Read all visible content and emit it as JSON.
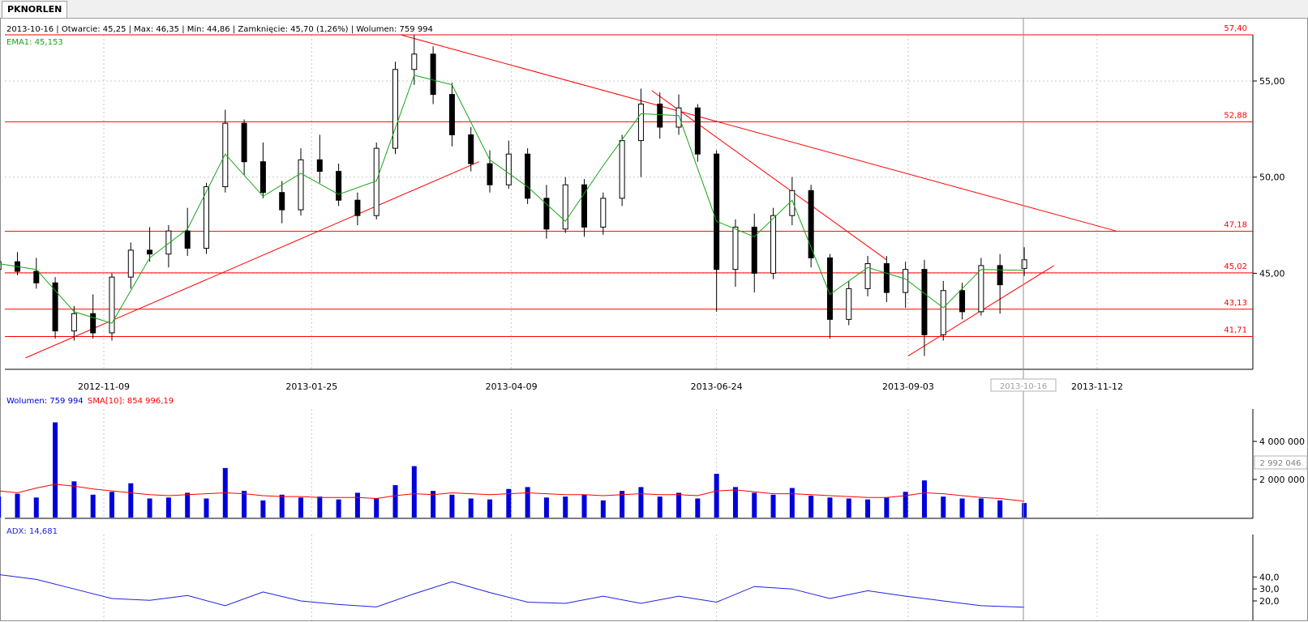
{
  "window": {
    "tab_label": "PKNORLEN"
  },
  "header": {
    "info_line": "2013-10-16 | Otwarcie: 45,25 | Max: 46,35 | Min: 44,86 | Zamknięcie: 45,70 (1,26%) | Wolumen: 759 994",
    "ema_label": "EMA1: 45,153",
    "volume_label": "Wolumen: 759 994",
    "sma_label": "SMA[10]: 854 996,19",
    "adx_label": "ADX: 14,681",
    "cursor_date": "2013-10-16",
    "cursor_volume": "2 992 046"
  },
  "colors": {
    "candle": "#000000",
    "ema": "#16a616",
    "support_resistance": "#ff0000",
    "volume_bar": "#0000dd",
    "sma": "#ff0000",
    "adx": "#2020e0",
    "grid": "#c8c8c8",
    "cursor": "#909090"
  },
  "chart_data": [
    {
      "type": "candlestick",
      "title": "PKNORLEN",
      "x_ticks": [
        "2012-11-09",
        "2013-01-25",
        "2013-04-09",
        "2013-06-24",
        "2013-09-03",
        "2013-11-12"
      ],
      "y_ticks": [
        "45,00",
        "50,00",
        "55,00"
      ],
      "ylim": [
        40.0,
        58.0
      ],
      "grid": true,
      "levels": [
        {
          "label": "57,40",
          "value": 57.4
        },
        {
          "label": "52,88",
          "value": 52.88
        },
        {
          "label": "47,18",
          "value": 47.18
        },
        {
          "label": "45,02",
          "value": 45.02
        },
        {
          "label": "43,13",
          "value": 43.13
        },
        {
          "label": "41,71",
          "value": 41.71
        }
      ],
      "trendlines": [
        {
          "name": "resistance-main",
          "from": [
            "2013-02-27",
            57.4
          ],
          "to": [
            "2013-11-19",
            47.2
          ]
        },
        {
          "name": "resistance-mid",
          "from": [
            "2013-05-31",
            54.5
          ],
          "to": [
            "2013-08-26",
            45.7
          ]
        },
        {
          "name": "support-main",
          "from": [
            "2012-10-11",
            40.6
          ],
          "to": [
            "2013-03-28",
            50.8
          ]
        },
        {
          "name": "support-recent",
          "from": [
            "2013-09-03",
            40.7
          ],
          "to": [
            "2013-10-27",
            45.4
          ]
        }
      ],
      "series": [
        {
          "name": "EMA1",
          "x": [
            "2012-10-01",
            "2012-10-15",
            "2012-10-29",
            "2012-11-12",
            "2012-11-26",
            "2012-12-10",
            "2012-12-24",
            "2013-01-07",
            "2013-01-21",
            "2013-02-04",
            "2013-02-18",
            "2013-03-04",
            "2013-03-18",
            "2013-04-01",
            "2013-04-15",
            "2013-04-29",
            "2013-05-13",
            "2013-05-27",
            "2013-06-10",
            "2013-06-24",
            "2013-07-08",
            "2013-07-22",
            "2013-08-05",
            "2013-08-19",
            "2013-09-02",
            "2013-09-16",
            "2013-09-30",
            "2013-10-16"
          ],
          "values": [
            45.5,
            45.2,
            43.0,
            42.4,
            45.8,
            47.3,
            51.2,
            49.0,
            50.2,
            49.1,
            49.8,
            55.3,
            54.8,
            50.9,
            49.5,
            47.7,
            50.6,
            53.3,
            53.2,
            47.7,
            46.9,
            48.8,
            43.9,
            45.3,
            44.7,
            43.2,
            45.2,
            45.15
          ]
        }
      ],
      "candles": [
        {
          "date": "2012-10-01",
          "open": 45.2,
          "high": 45.9,
          "low": 44.8,
          "close": 45.6
        },
        {
          "date": "2012-10-08",
          "open": 45.6,
          "high": 46.1,
          "low": 44.9,
          "close": 45.1
        },
        {
          "date": "2012-10-15",
          "open": 45.1,
          "high": 45.8,
          "low": 44.2,
          "close": 44.5
        },
        {
          "date": "2012-10-22",
          "open": 44.5,
          "high": 44.8,
          "low": 41.6,
          "close": 42.0
        },
        {
          "date": "2012-10-29",
          "open": 42.0,
          "high": 43.3,
          "low": 41.5,
          "close": 42.9
        },
        {
          "date": "2012-11-05",
          "open": 42.9,
          "high": 43.9,
          "low": 41.6,
          "close": 41.9
        },
        {
          "date": "2012-11-12",
          "open": 41.9,
          "high": 45.0,
          "low": 41.5,
          "close": 44.8
        },
        {
          "date": "2012-11-19",
          "open": 44.8,
          "high": 46.6,
          "low": 44.2,
          "close": 46.2
        },
        {
          "date": "2012-11-26",
          "open": 46.2,
          "high": 47.4,
          "low": 45.6,
          "close": 46.0
        },
        {
          "date": "2012-12-03",
          "open": 46.0,
          "high": 47.5,
          "low": 45.3,
          "close": 47.2
        },
        {
          "date": "2012-12-10",
          "open": 47.2,
          "high": 48.4,
          "low": 45.9,
          "close": 46.3
        },
        {
          "date": "2012-12-17",
          "open": 46.3,
          "high": 49.7,
          "low": 46.0,
          "close": 49.5
        },
        {
          "date": "2012-12-24",
          "open": 49.5,
          "high": 53.5,
          "low": 49.2,
          "close": 52.8
        },
        {
          "date": "2012-12-31",
          "open": 52.8,
          "high": 53.0,
          "low": 50.1,
          "close": 50.8
        },
        {
          "date": "2013-01-07",
          "open": 50.8,
          "high": 51.8,
          "low": 48.9,
          "close": 49.2
        },
        {
          "date": "2013-01-14",
          "open": 49.2,
          "high": 49.8,
          "low": 47.6,
          "close": 48.3
        },
        {
          "date": "2013-01-21",
          "open": 48.3,
          "high": 51.5,
          "low": 48.0,
          "close": 50.9
        },
        {
          "date": "2013-01-28",
          "open": 50.9,
          "high": 52.2,
          "low": 49.7,
          "close": 50.3
        },
        {
          "date": "2013-02-04",
          "open": 50.3,
          "high": 50.7,
          "low": 48.5,
          "close": 48.8
        },
        {
          "date": "2013-02-11",
          "open": 48.8,
          "high": 49.2,
          "low": 47.5,
          "close": 48.0
        },
        {
          "date": "2013-02-18",
          "open": 48.0,
          "high": 51.8,
          "low": 47.8,
          "close": 51.5
        },
        {
          "date": "2013-02-25",
          "open": 51.5,
          "high": 56.0,
          "low": 51.2,
          "close": 55.6
        },
        {
          "date": "2013-03-04",
          "open": 55.6,
          "high": 57.4,
          "low": 54.8,
          "close": 56.4
        },
        {
          "date": "2013-03-11",
          "open": 56.4,
          "high": 56.8,
          "low": 53.8,
          "close": 54.3
        },
        {
          "date": "2013-03-18",
          "open": 54.3,
          "high": 54.9,
          "low": 51.6,
          "close": 52.2
        },
        {
          "date": "2013-03-25",
          "open": 52.2,
          "high": 52.6,
          "low": 50.3,
          "close": 50.7
        },
        {
          "date": "2013-04-01",
          "open": 50.7,
          "high": 51.4,
          "low": 49.2,
          "close": 49.6
        },
        {
          "date": "2013-04-08",
          "open": 49.6,
          "high": 51.9,
          "low": 49.4,
          "close": 51.2
        },
        {
          "date": "2013-04-15",
          "open": 51.2,
          "high": 51.5,
          "low": 48.6,
          "close": 48.9
        },
        {
          "date": "2013-04-22",
          "open": 48.9,
          "high": 49.6,
          "low": 46.8,
          "close": 47.3
        },
        {
          "date": "2013-04-29",
          "open": 47.3,
          "high": 50.0,
          "low": 47.1,
          "close": 49.6
        },
        {
          "date": "2013-05-06",
          "open": 49.6,
          "high": 49.9,
          "low": 46.9,
          "close": 47.4
        },
        {
          "date": "2013-05-13",
          "open": 47.4,
          "high": 49.2,
          "low": 47.0,
          "close": 48.9
        },
        {
          "date": "2013-05-20",
          "open": 48.9,
          "high": 52.2,
          "low": 48.5,
          "close": 51.9
        },
        {
          "date": "2013-05-27",
          "open": 51.9,
          "high": 54.6,
          "low": 50.0,
          "close": 53.8
        },
        {
          "date": "2013-06-03",
          "open": 53.8,
          "high": 54.4,
          "low": 52.0,
          "close": 52.6
        },
        {
          "date": "2013-06-10",
          "open": 52.6,
          "high": 54.3,
          "low": 52.2,
          "close": 53.6
        },
        {
          "date": "2013-06-17",
          "open": 53.6,
          "high": 53.8,
          "low": 50.8,
          "close": 51.2
        },
        {
          "date": "2013-06-24",
          "open": 51.2,
          "high": 51.4,
          "low": 43.0,
          "close": 45.2
        },
        {
          "date": "2013-07-01",
          "open": 45.2,
          "high": 47.8,
          "low": 44.3,
          "close": 47.4
        },
        {
          "date": "2013-07-08",
          "open": 47.4,
          "high": 48.1,
          "low": 44.0,
          "close": 45.0
        },
        {
          "date": "2013-07-15",
          "open": 45.0,
          "high": 48.4,
          "low": 44.7,
          "close": 48.0
        },
        {
          "date": "2013-07-22",
          "open": 48.0,
          "high": 50.0,
          "low": 47.5,
          "close": 49.3
        },
        {
          "date": "2013-07-29",
          "open": 49.3,
          "high": 49.6,
          "low": 45.3,
          "close": 45.8
        },
        {
          "date": "2013-08-05",
          "open": 45.8,
          "high": 46.0,
          "low": 41.6,
          "close": 42.6
        },
        {
          "date": "2013-08-12",
          "open": 42.6,
          "high": 44.6,
          "low": 42.3,
          "close": 44.2
        },
        {
          "date": "2013-08-19",
          "open": 44.2,
          "high": 45.9,
          "low": 43.8,
          "close": 45.5
        },
        {
          "date": "2013-08-26",
          "open": 45.5,
          "high": 45.9,
          "low": 43.5,
          "close": 44.0
        },
        {
          "date": "2013-09-02",
          "open": 44.0,
          "high": 45.6,
          "low": 43.2,
          "close": 45.2
        },
        {
          "date": "2013-09-09",
          "open": 45.2,
          "high": 45.7,
          "low": 40.7,
          "close": 41.8
        },
        {
          "date": "2013-09-16",
          "open": 41.8,
          "high": 44.6,
          "low": 41.5,
          "close": 44.1
        },
        {
          "date": "2013-09-23",
          "open": 44.1,
          "high": 44.5,
          "low": 42.6,
          "close": 43.0
        },
        {
          "date": "2013-09-30",
          "open": 43.0,
          "high": 45.8,
          "low": 42.8,
          "close": 45.4
        },
        {
          "date": "2013-10-07",
          "open": 45.4,
          "high": 46.0,
          "low": 42.9,
          "close": 44.4
        },
        {
          "date": "2013-10-16",
          "open": 45.25,
          "high": 46.35,
          "low": 44.86,
          "close": 45.7
        }
      ]
    },
    {
      "type": "bar",
      "title": "Wolumen",
      "y_ticks": [
        "2 000 000",
        "4 000 000"
      ],
      "ylim": [
        0,
        5200000
      ],
      "categories": [
        "2012-10-01",
        "2012-10-08",
        "2012-10-15",
        "2012-10-22",
        "2012-10-29",
        "2012-11-05",
        "2012-11-12",
        "2012-11-19",
        "2012-11-26",
        "2012-12-03",
        "2012-12-10",
        "2012-12-17",
        "2012-12-24",
        "2012-12-31",
        "2013-01-07",
        "2013-01-14",
        "2013-01-21",
        "2013-01-28",
        "2013-02-04",
        "2013-02-11",
        "2013-02-18",
        "2013-02-25",
        "2013-03-04",
        "2013-03-11",
        "2013-03-18",
        "2013-03-25",
        "2013-04-01",
        "2013-04-08",
        "2013-04-15",
        "2013-04-22",
        "2013-04-29",
        "2013-05-06",
        "2013-05-13",
        "2013-05-20",
        "2013-05-27",
        "2013-06-03",
        "2013-06-10",
        "2013-06-17",
        "2013-06-24",
        "2013-07-01",
        "2013-07-08",
        "2013-07-15",
        "2013-07-22",
        "2013-07-29",
        "2013-08-05",
        "2013-08-12",
        "2013-08-19",
        "2013-08-26",
        "2013-09-02",
        "2013-09-09",
        "2013-09-16",
        "2013-09-23",
        "2013-09-30",
        "2013-10-07",
        "2013-10-16"
      ],
      "series": [
        {
          "name": "Wolumen",
          "values": [
            1100000,
            1250000,
            1050000,
            5000000,
            1900000,
            1200000,
            1350000,
            1800000,
            1000000,
            1050000,
            1300000,
            1000000,
            2600000,
            1400000,
            900000,
            1200000,
            1050000,
            1100000,
            950000,
            1300000,
            1000000,
            1700000,
            2700000,
            1400000,
            1200000,
            1000000,
            950000,
            1500000,
            1600000,
            1050000,
            1100000,
            1200000,
            900000,
            1400000,
            1600000,
            1100000,
            1300000,
            1000000,
            2300000,
            1600000,
            1300000,
            1200000,
            1550000,
            1150000,
            1050000,
            1000000,
            950000,
            1050000,
            1350000,
            1950000,
            1100000,
            1000000,
            1000000,
            900000,
            759994
          ]
        },
        {
          "name": "SMA[10]",
          "values": [
            1400000,
            1300000,
            1550000,
            1750000,
            1650000,
            1500000,
            1400000,
            1300000,
            1200000,
            1150000,
            1200000,
            1250000,
            1300000,
            1250000,
            1150000,
            1100000,
            1100000,
            1050000,
            1050000,
            1050000,
            1000000,
            1150000,
            1250000,
            1200000,
            1300000,
            1250000,
            1200000,
            1250000,
            1300000,
            1250000,
            1200000,
            1200000,
            1150000,
            1200000,
            1250000,
            1200000,
            1200000,
            1150000,
            1400000,
            1450000,
            1350000,
            1250000,
            1250000,
            1200000,
            1150000,
            1100000,
            1050000,
            1050000,
            1150000,
            1300000,
            1250000,
            1150000,
            1050000,
            1000000,
            854996
          ]
        }
      ]
    },
    {
      "type": "line",
      "title": "ADX",
      "y_ticks": [
        "20,0",
        "30,0",
        "40,0"
      ],
      "ylim": [
        10,
        45
      ],
      "x": [
        "2012-10-01",
        "2012-10-15",
        "2012-10-29",
        "2012-11-12",
        "2012-11-26",
        "2012-12-10",
        "2012-12-24",
        "2013-01-07",
        "2013-01-21",
        "2013-02-04",
        "2013-02-18",
        "2013-03-04",
        "2013-03-18",
        "2013-04-01",
        "2013-04-15",
        "2013-04-29",
        "2013-05-13",
        "2013-05-27",
        "2013-06-10",
        "2013-06-24",
        "2013-07-08",
        "2013-07-22",
        "2013-08-05",
        "2013-08-19",
        "2013-09-02",
        "2013-09-16",
        "2013-09-30",
        "2013-10-16"
      ],
      "series": [
        {
          "name": "ADX",
          "values": [
            42.0,
            38.0,
            30.0,
            22.0,
            20.5,
            24.5,
            16.0,
            27.5,
            20.0,
            17.0,
            15.0,
            26.0,
            36.0,
            27.0,
            19.0,
            18.0,
            24.0,
            18.0,
            24.0,
            19.0,
            32.0,
            30.0,
            22.0,
            28.5,
            24.0,
            20.0,
            16.0,
            14.7
          ]
        }
      ]
    }
  ]
}
